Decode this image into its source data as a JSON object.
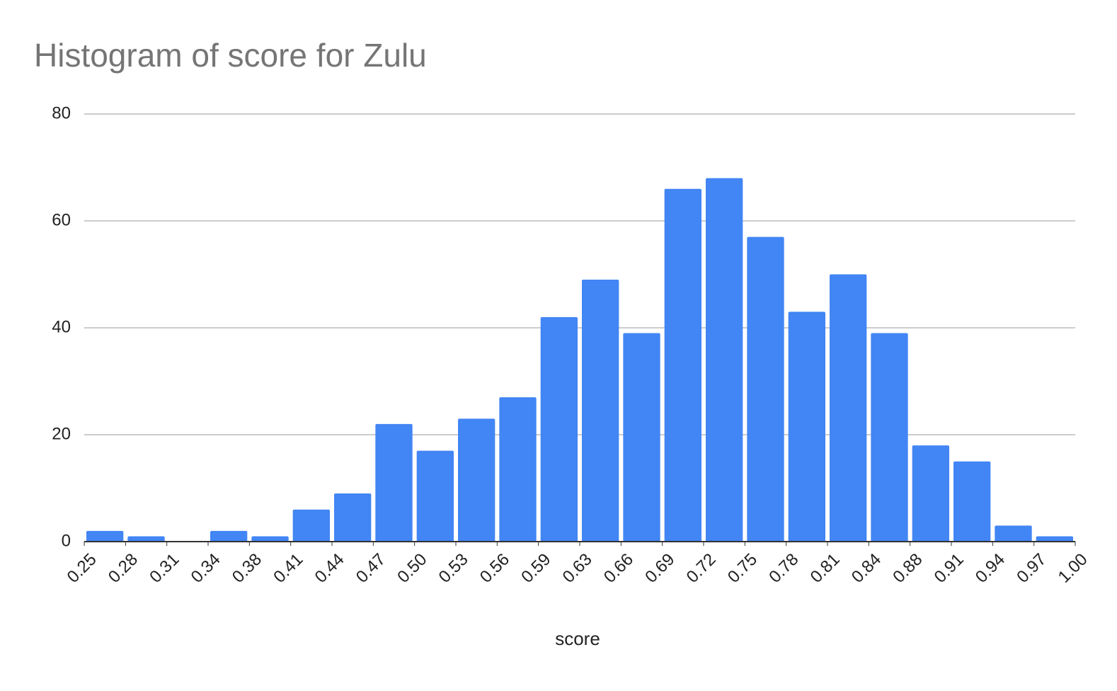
{
  "chart_data": {
    "type": "histogram",
    "title": "Histogram of score for Zulu",
    "x_label": "score",
    "bins": [
      0.25,
      0.28125,
      0.3125,
      0.34375,
      0.375,
      0.40625,
      0.4375,
      0.46875,
      0.5,
      0.53125,
      0.5625,
      0.59375,
      0.625,
      0.65625,
      0.6875,
      0.71875,
      0.75,
      0.78125,
      0.8125,
      0.84375,
      0.875,
      0.90625,
      0.9375,
      0.96875,
      1.0
    ],
    "values": [
      2,
      1,
      0,
      2,
      1,
      6,
      9,
      22,
      17,
      23,
      27,
      42,
      49,
      39,
      66,
      68,
      57,
      43,
      50,
      39,
      18,
      15,
      3,
      1
    ],
    "color": "#4285f4",
    "xlim": [
      0.25,
      1.0
    ],
    "xticks": [
      {
        "value": 0.25,
        "label": "0.25"
      },
      {
        "value": 0.28125,
        "label": "0.28"
      },
      {
        "value": 0.3125,
        "label": "0.31"
      },
      {
        "value": 0.34375,
        "label": "0.34"
      },
      {
        "value": 0.375,
        "label": "0.38"
      },
      {
        "value": 0.40625,
        "label": "0.41"
      },
      {
        "value": 0.4375,
        "label": "0.44"
      },
      {
        "value": 0.46875,
        "label": "0.47"
      },
      {
        "value": 0.5,
        "label": "0.50"
      },
      {
        "value": 0.53125,
        "label": "0.53"
      },
      {
        "value": 0.5625,
        "label": "0.56"
      },
      {
        "value": 0.59375,
        "label": "0.59"
      },
      {
        "value": 0.625,
        "label": "0.63"
      },
      {
        "value": 0.65625,
        "label": "0.66"
      },
      {
        "value": 0.6875,
        "label": "0.69"
      },
      {
        "value": 0.71875,
        "label": "0.72"
      },
      {
        "value": 0.75,
        "label": "0.75"
      },
      {
        "value": 0.78125,
        "label": "0.78"
      },
      {
        "value": 0.8125,
        "label": "0.81"
      },
      {
        "value": 0.84375,
        "label": "0.84"
      },
      {
        "value": 0.875,
        "label": "0.88"
      },
      {
        "value": 0.90625,
        "label": "0.91"
      },
      {
        "value": 0.9375,
        "label": "0.94"
      },
      {
        "value": 0.96875,
        "label": "0.97"
      },
      {
        "value": 1.0,
        "label": "1.00"
      }
    ],
    "ylim": [
      0,
      80
    ],
    "yticks": [
      0,
      20,
      40,
      60,
      80
    ],
    "grid": true
  }
}
